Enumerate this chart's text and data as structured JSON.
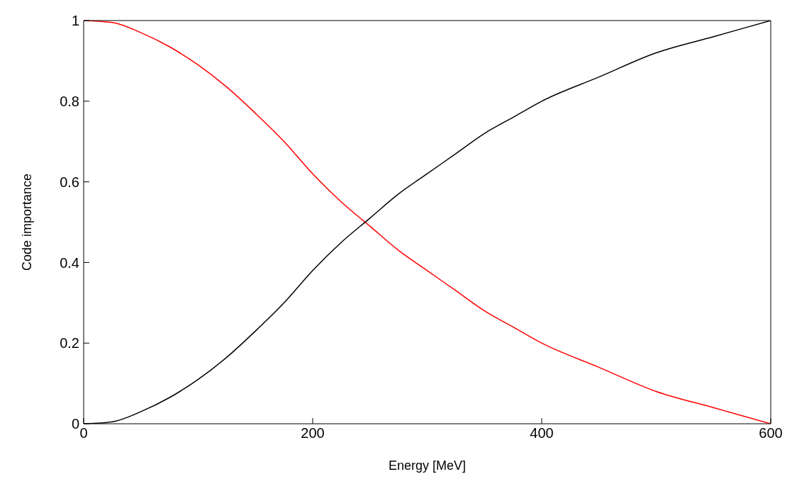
{
  "chart_data": {
    "type": "line",
    "xlabel": "Energy [MeV]",
    "ylabel": "Code importance",
    "x": [
      0,
      25,
      50,
      75,
      100,
      125,
      150,
      175,
      200,
      225,
      250,
      275,
      300,
      325,
      350,
      375,
      400,
      450,
      500,
      550,
      600
    ],
    "series": [
      {
        "color": "#ff0000",
        "values": [
          1,
          0.995,
          0.97,
          0.935,
          0.89,
          0.835,
          0.77,
          0.7,
          0.62,
          0.55,
          0.49,
          0.43,
          0.38,
          0.33,
          0.28,
          0.24,
          0.2,
          0.14,
          0.08,
          0.04,
          0
        ]
      },
      {
        "color": "#000000",
        "values": [
          0,
          0.005,
          0.03,
          0.065,
          0.11,
          0.165,
          0.23,
          0.3,
          0.38,
          0.45,
          0.51,
          0.57,
          0.62,
          0.67,
          0.72,
          0.76,
          0.8,
          0.86,
          0.92,
          0.96,
          1
        ]
      }
    ],
    "xlim": [
      0,
      600
    ],
    "xticks": [
      0,
      200,
      400,
      600
    ],
    "ylim": [
      0,
      1
    ],
    "yticks": [
      0,
      0.2,
      0.4,
      0.6,
      0.8,
      1
    ],
    "line_style": "solid"
  }
}
